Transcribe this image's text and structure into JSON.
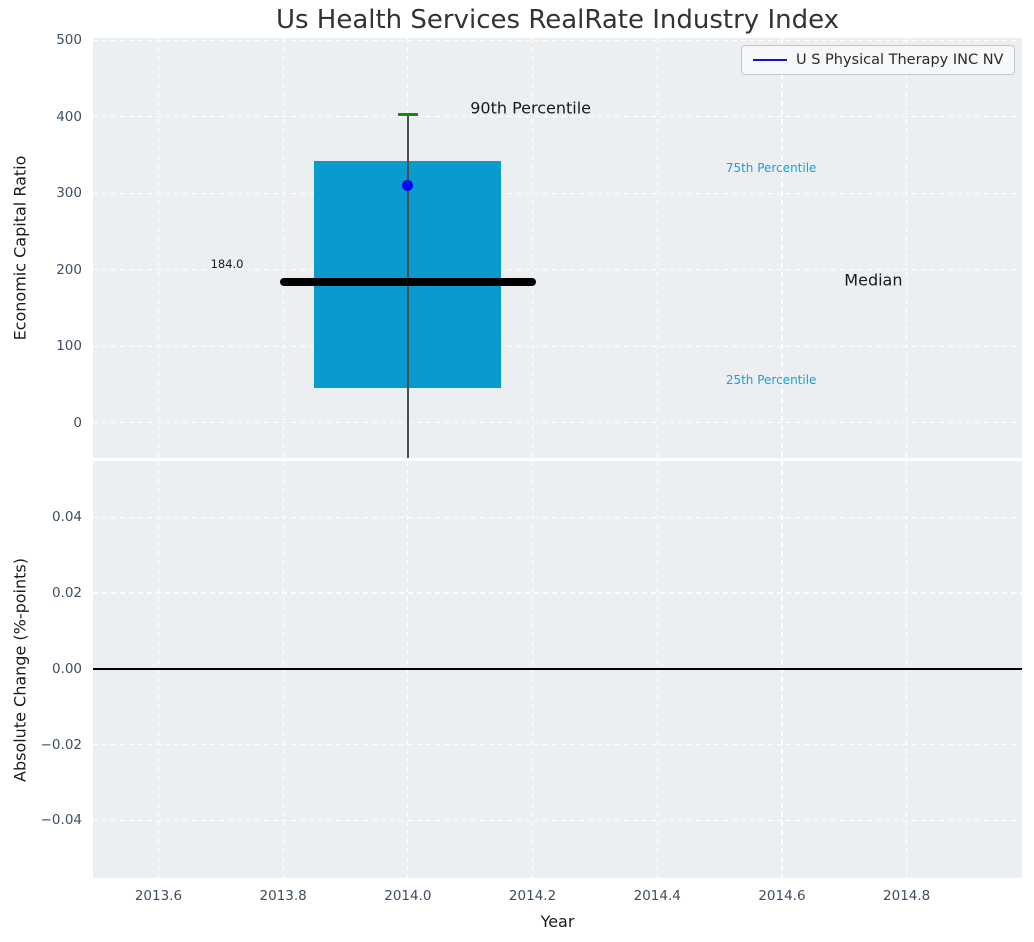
{
  "title": "Us Health Services RealRate Industry Index",
  "legend": {
    "label": "U S Physical Therapy INC NV",
    "line_color": "#1414cc"
  },
  "colors": {
    "figure_bg": "#ffffff",
    "plot_bg": "#eceff1",
    "grid": "#ffffff",
    "tick_label": "#3d4f63",
    "title_color": "#333333",
    "box_fill": "#099bce",
    "median_line": "#000000",
    "whisker": "#4d4d4d",
    "cap_90th": "#128a12",
    "company_dot": "#0606f0",
    "percentile_label": "#1c9fd4",
    "annotation_dark": "#1a1a1a",
    "zero_line": "#000000"
  },
  "chart_data": [
    {
      "type": "boxplot",
      "panel": "top",
      "ylabel": "Economic Capital Ratio",
      "xlim": [
        2013.495,
        2014.985
      ],
      "ylim": [
        -46,
        503
      ],
      "grid": true,
      "yticks": [
        {
          "v": 0,
          "label": "0"
        },
        {
          "v": 100,
          "label": "100"
        },
        {
          "v": 200,
          "label": "200"
        },
        {
          "v": 300,
          "label": "300"
        },
        {
          "v": 400,
          "label": "400"
        },
        {
          "v": 500,
          "label": "500"
        }
      ],
      "xticks": [
        {
          "v": 2013.6,
          "label": "2013.6"
        },
        {
          "v": 2013.8,
          "label": "2013.8"
        },
        {
          "v": 2014.0,
          "label": "2014.0"
        },
        {
          "v": 2014.2,
          "label": "2014.2"
        },
        {
          "v": 2014.4,
          "label": "2014.4"
        },
        {
          "v": 2014.6,
          "label": "2014.6"
        },
        {
          "v": 2014.8,
          "label": "2014.8"
        }
      ],
      "box": {
        "x_center": 2014.0,
        "box_x": [
          2013.85,
          2014.15
        ],
        "median_x": [
          2013.795,
          2014.205
        ],
        "q1": 45,
        "median": 184,
        "q3": 342,
        "p90": 403,
        "whisker_low": -46,
        "cap_half_width": 0.016
      },
      "company_point": {
        "name": "U S Physical Therapy INC NV",
        "x": 2014.0,
        "y": 310
      },
      "annotations": [
        {
          "text": "90th Percentile",
          "x": 2014.1,
          "y": 412,
          "align": "left",
          "color_key": "annotation_dark",
          "size": 16
        },
        {
          "text": "75th Percentile",
          "x": 2014.51,
          "y": 333,
          "align": "left",
          "color_key": "percentile_label",
          "size": 12
        },
        {
          "text": "Median",
          "x": 2014.7,
          "y": 187,
          "align": "left",
          "color_key": "annotation_dark",
          "size": 16
        },
        {
          "text": "25th Percentile",
          "x": 2014.51,
          "y": 56,
          "align": "left",
          "color_key": "percentile_label",
          "size": 12
        },
        {
          "text": "184.0",
          "x": 2013.71,
          "y": 207,
          "align": "center",
          "color_key": "annotation_dark",
          "size": 11.5
        }
      ]
    },
    {
      "type": "line",
      "panel": "bottom",
      "ylabel": "Absolute Change (%-points)",
      "xlabel": "Year",
      "xlim": [
        2013.495,
        2014.985
      ],
      "ylim": [
        -0.0552,
        0.0548
      ],
      "grid": true,
      "yticks": [
        {
          "v": 0.04,
          "label": "0.04"
        },
        {
          "v": 0.02,
          "label": "0.02"
        },
        {
          "v": 0.0,
          "label": "0.00"
        },
        {
          "v": -0.02,
          "label": "−0.02"
        },
        {
          "v": -0.04,
          "label": "−0.04"
        }
      ],
      "xticks": [
        {
          "v": 2013.6,
          "label": "2013.6"
        },
        {
          "v": 2013.8,
          "label": "2013.8"
        },
        {
          "v": 2014.0,
          "label": "2014.0"
        },
        {
          "v": 2014.2,
          "label": "2014.2"
        },
        {
          "v": 2014.4,
          "label": "2014.4"
        },
        {
          "v": 2014.6,
          "label": "2014.6"
        },
        {
          "v": 2014.8,
          "label": "2014.8"
        }
      ],
      "zero_line_y": 0.0,
      "series": []
    }
  ]
}
